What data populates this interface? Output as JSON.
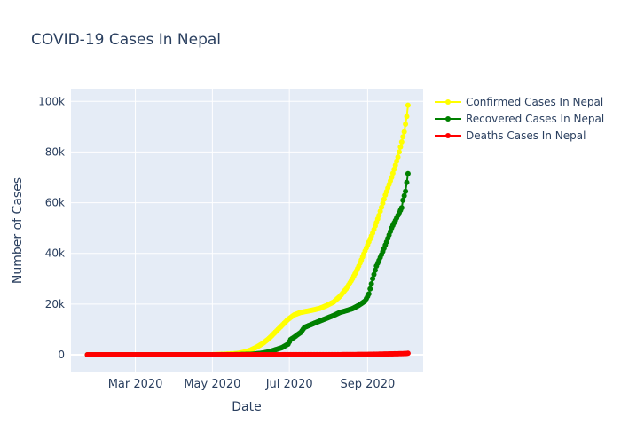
{
  "chart_data": {
    "type": "line",
    "title": "COVID-19 Cases In Nepal",
    "xlabel": "Date",
    "ylabel": "Number of Cases",
    "x_ticks": [
      {
        "date": "2020-03-01",
        "label": "Mar 2020"
      },
      {
        "date": "2020-05-01",
        "label": "May 2020"
      },
      {
        "date": "2020-07-01",
        "label": "Jul 2020"
      },
      {
        "date": "2020-09-01",
        "label": "Sep 2020"
      }
    ],
    "y_ticks": [
      {
        "value": 0,
        "label": "0"
      },
      {
        "value": 20000,
        "label": "20k"
      },
      {
        "value": 40000,
        "label": "40k"
      },
      {
        "value": 60000,
        "label": "60k"
      },
      {
        "value": 80000,
        "label": "80k"
      },
      {
        "value": 100000,
        "label": "100k"
      }
    ],
    "xlim": [
      "2020-01-10",
      "2020-10-15"
    ],
    "ylim": [
      -7000,
      105000
    ],
    "grid": true,
    "legend_position": "top-right",
    "series": [
      {
        "name": "Confirmed Cases In Nepal",
        "color": "#ffff00",
        "points": [
          [
            "2020-01-23",
            0
          ],
          [
            "2020-02-15",
            1
          ],
          [
            "2020-03-15",
            1
          ],
          [
            "2020-04-01",
            5
          ],
          [
            "2020-04-15",
            16
          ],
          [
            "2020-05-01",
            57
          ],
          [
            "2020-05-10",
            200
          ],
          [
            "2020-05-20",
            500
          ],
          [
            "2020-05-25",
            900
          ],
          [
            "2020-05-31",
            1800
          ],
          [
            "2020-06-05",
            3000
          ],
          [
            "2020-06-10",
            4500
          ],
          [
            "2020-06-15",
            6500
          ],
          [
            "2020-06-20",
            9000
          ],
          [
            "2020-06-25",
            11500
          ],
          [
            "2020-06-30",
            14000
          ],
          [
            "2020-07-05",
            15800
          ],
          [
            "2020-07-10",
            16700
          ],
          [
            "2020-07-15",
            17200
          ],
          [
            "2020-07-20",
            17700
          ],
          [
            "2020-07-25",
            18300
          ],
          [
            "2020-07-30",
            19300
          ],
          [
            "2020-08-05",
            20800
          ],
          [
            "2020-08-10",
            23000
          ],
          [
            "2020-08-15",
            26000
          ],
          [
            "2020-08-20",
            30000
          ],
          [
            "2020-08-25",
            35000
          ],
          [
            "2020-08-30",
            41000
          ],
          [
            "2020-09-05",
            48000
          ],
          [
            "2020-09-10",
            55000
          ],
          [
            "2020-09-15",
            63000
          ],
          [
            "2020-09-20",
            70000
          ],
          [
            "2020-09-25",
            78000
          ],
          [
            "2020-09-30",
            88000
          ],
          [
            "2020-10-02",
            94000
          ],
          [
            "2020-10-03",
            98500
          ]
        ]
      },
      {
        "name": "Recovered Cases In Nepal",
        "color": "#008000",
        "points": [
          [
            "2020-01-23",
            0
          ],
          [
            "2020-03-01",
            0
          ],
          [
            "2020-04-15",
            1
          ],
          [
            "2020-05-15",
            30
          ],
          [
            "2020-06-01",
            200
          ],
          [
            "2020-06-10",
            700
          ],
          [
            "2020-06-15",
            1200
          ],
          [
            "2020-06-20",
            2000
          ],
          [
            "2020-06-25",
            2800
          ],
          [
            "2020-06-30",
            4200
          ],
          [
            "2020-07-02",
            6000
          ],
          [
            "2020-07-05",
            7000
          ],
          [
            "2020-07-10",
            8800
          ],
          [
            "2020-07-13",
            10800
          ],
          [
            "2020-07-20",
            12300
          ],
          [
            "2020-07-25",
            13300
          ],
          [
            "2020-07-30",
            14300
          ],
          [
            "2020-08-05",
            15500
          ],
          [
            "2020-08-10",
            16700
          ],
          [
            "2020-08-15",
            17400
          ],
          [
            "2020-08-20",
            18200
          ],
          [
            "2020-08-25",
            19500
          ],
          [
            "2020-08-30",
            21200
          ],
          [
            "2020-09-02",
            24000
          ],
          [
            "2020-09-05",
            30000
          ],
          [
            "2020-09-08",
            35000
          ],
          [
            "2020-09-12",
            39500
          ],
          [
            "2020-09-16",
            44500
          ],
          [
            "2020-09-20",
            50000
          ],
          [
            "2020-09-25",
            55000
          ],
          [
            "2020-09-28",
            58000
          ],
          [
            "2020-09-29",
            61000
          ],
          [
            "2020-10-01",
            64500
          ],
          [
            "2020-10-02",
            68000
          ],
          [
            "2020-10-03",
            71500
          ]
        ]
      },
      {
        "name": "Deaths Cases In Nepal",
        "color": "#ff0000",
        "points": [
          [
            "2020-01-23",
            0
          ],
          [
            "2020-03-01",
            0
          ],
          [
            "2020-05-15",
            0
          ],
          [
            "2020-06-15",
            10
          ],
          [
            "2020-07-01",
            30
          ],
          [
            "2020-07-15",
            38
          ],
          [
            "2020-08-01",
            50
          ],
          [
            "2020-08-15",
            70
          ],
          [
            "2020-09-01",
            150
          ],
          [
            "2020-09-15",
            300
          ],
          [
            "2020-10-01",
            480
          ],
          [
            "2020-10-03",
            590
          ]
        ]
      }
    ]
  }
}
